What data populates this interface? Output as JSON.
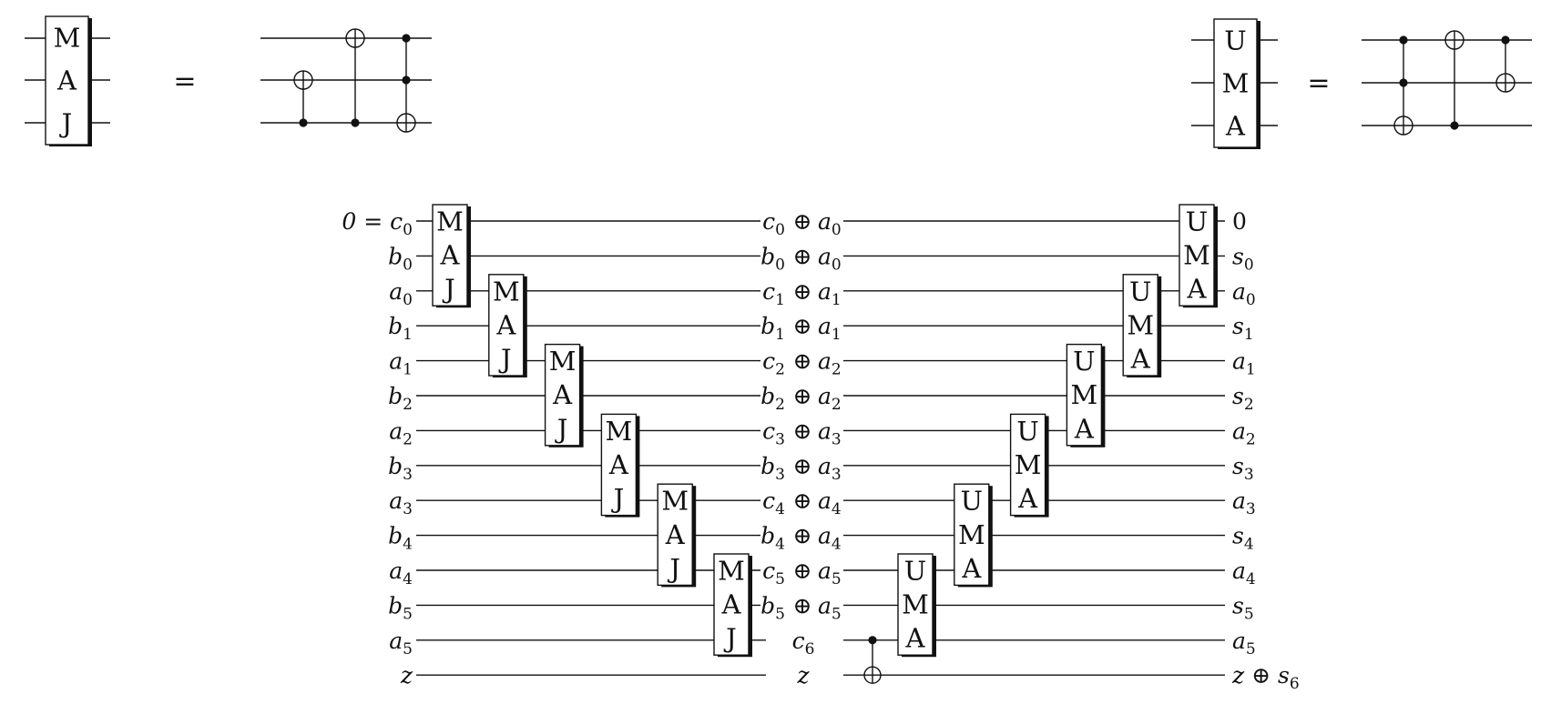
{
  "maj_gate": {
    "letters": [
      "M",
      "A",
      "J"
    ]
  },
  "uma_gate": {
    "letters": [
      "U",
      "M",
      "A"
    ]
  },
  "equals_symbol": "=",
  "gate_circuits": {
    "maj": [
      {
        "target": 1,
        "controls": [
          2
        ]
      },
      {
        "target": 0,
        "controls": [
          2
        ]
      },
      {
        "target": 2,
        "controls": [
          0,
          1
        ]
      }
    ],
    "uma": [
      {
        "target": 2,
        "controls": [
          0,
          1
        ]
      },
      {
        "target": 0,
        "controls": [
          2
        ]
      },
      {
        "target": 1,
        "controls": [
          0
        ]
      }
    ]
  },
  "adder": {
    "input_labels": [
      {
        "main": "0 = c",
        "sub": "0"
      },
      {
        "main": "b",
        "sub": "0"
      },
      {
        "main": "a",
        "sub": "0"
      },
      {
        "main": "b",
        "sub": "1"
      },
      {
        "main": "a",
        "sub": "1"
      },
      {
        "main": "b",
        "sub": "2"
      },
      {
        "main": "a",
        "sub": "2"
      },
      {
        "main": "b",
        "sub": "3"
      },
      {
        "main": "a",
        "sub": "3"
      },
      {
        "main": "b",
        "sub": "4"
      },
      {
        "main": "a",
        "sub": "4"
      },
      {
        "main": "b",
        "sub": "5"
      },
      {
        "main": "a",
        "sub": "5"
      },
      {
        "main": "z",
        "sub": ""
      }
    ],
    "middle_labels": [
      {
        "l": "c",
        "ls": "0",
        "r": "a",
        "rs": "0"
      },
      {
        "l": "b",
        "ls": "0",
        "r": "a",
        "rs": "0"
      },
      {
        "l": "c",
        "ls": "1",
        "r": "a",
        "rs": "1"
      },
      {
        "l": "b",
        "ls": "1",
        "r": "a",
        "rs": "1"
      },
      {
        "l": "c",
        "ls": "2",
        "r": "a",
        "rs": "2"
      },
      {
        "l": "b",
        "ls": "2",
        "r": "a",
        "rs": "2"
      },
      {
        "l": "c",
        "ls": "3",
        "r": "a",
        "rs": "3"
      },
      {
        "l": "b",
        "ls": "3",
        "r": "a",
        "rs": "3"
      },
      {
        "l": "c",
        "ls": "4",
        "r": "a",
        "rs": "4"
      },
      {
        "l": "b",
        "ls": "4",
        "r": "a",
        "rs": "4"
      },
      {
        "l": "c",
        "ls": "5",
        "r": "a",
        "rs": "5"
      },
      {
        "l": "b",
        "ls": "5",
        "r": "a",
        "rs": "5"
      },
      {
        "l": "c",
        "ls": "6",
        "r": "",
        "rs": ""
      },
      {
        "l": "z",
        "ls": "",
        "r": "",
        "rs": ""
      }
    ],
    "xor_symbol": "⊕",
    "output_labels": [
      {
        "main": "0",
        "sub": "",
        "plain": true
      },
      {
        "main": "s",
        "sub": "0"
      },
      {
        "main": "a",
        "sub": "0"
      },
      {
        "main": "s",
        "sub": "1"
      },
      {
        "main": "a",
        "sub": "1"
      },
      {
        "main": "s",
        "sub": "2"
      },
      {
        "main": "a",
        "sub": "2"
      },
      {
        "main": "s",
        "sub": "3"
      },
      {
        "main": "a",
        "sub": "3"
      },
      {
        "main": "s",
        "sub": "4"
      },
      {
        "main": "a",
        "sub": "4"
      },
      {
        "main": "s",
        "sub": "5"
      },
      {
        "main": "a",
        "sub": "5"
      },
      {
        "main": "z ⊕ s",
        "sub": "6"
      }
    ],
    "maj_blocks": [
      0,
      2,
      4,
      6,
      8,
      10
    ],
    "uma_blocks": [
      0,
      2,
      4,
      6,
      8,
      10
    ],
    "cnot": {
      "control": 12,
      "target": 13
    }
  }
}
